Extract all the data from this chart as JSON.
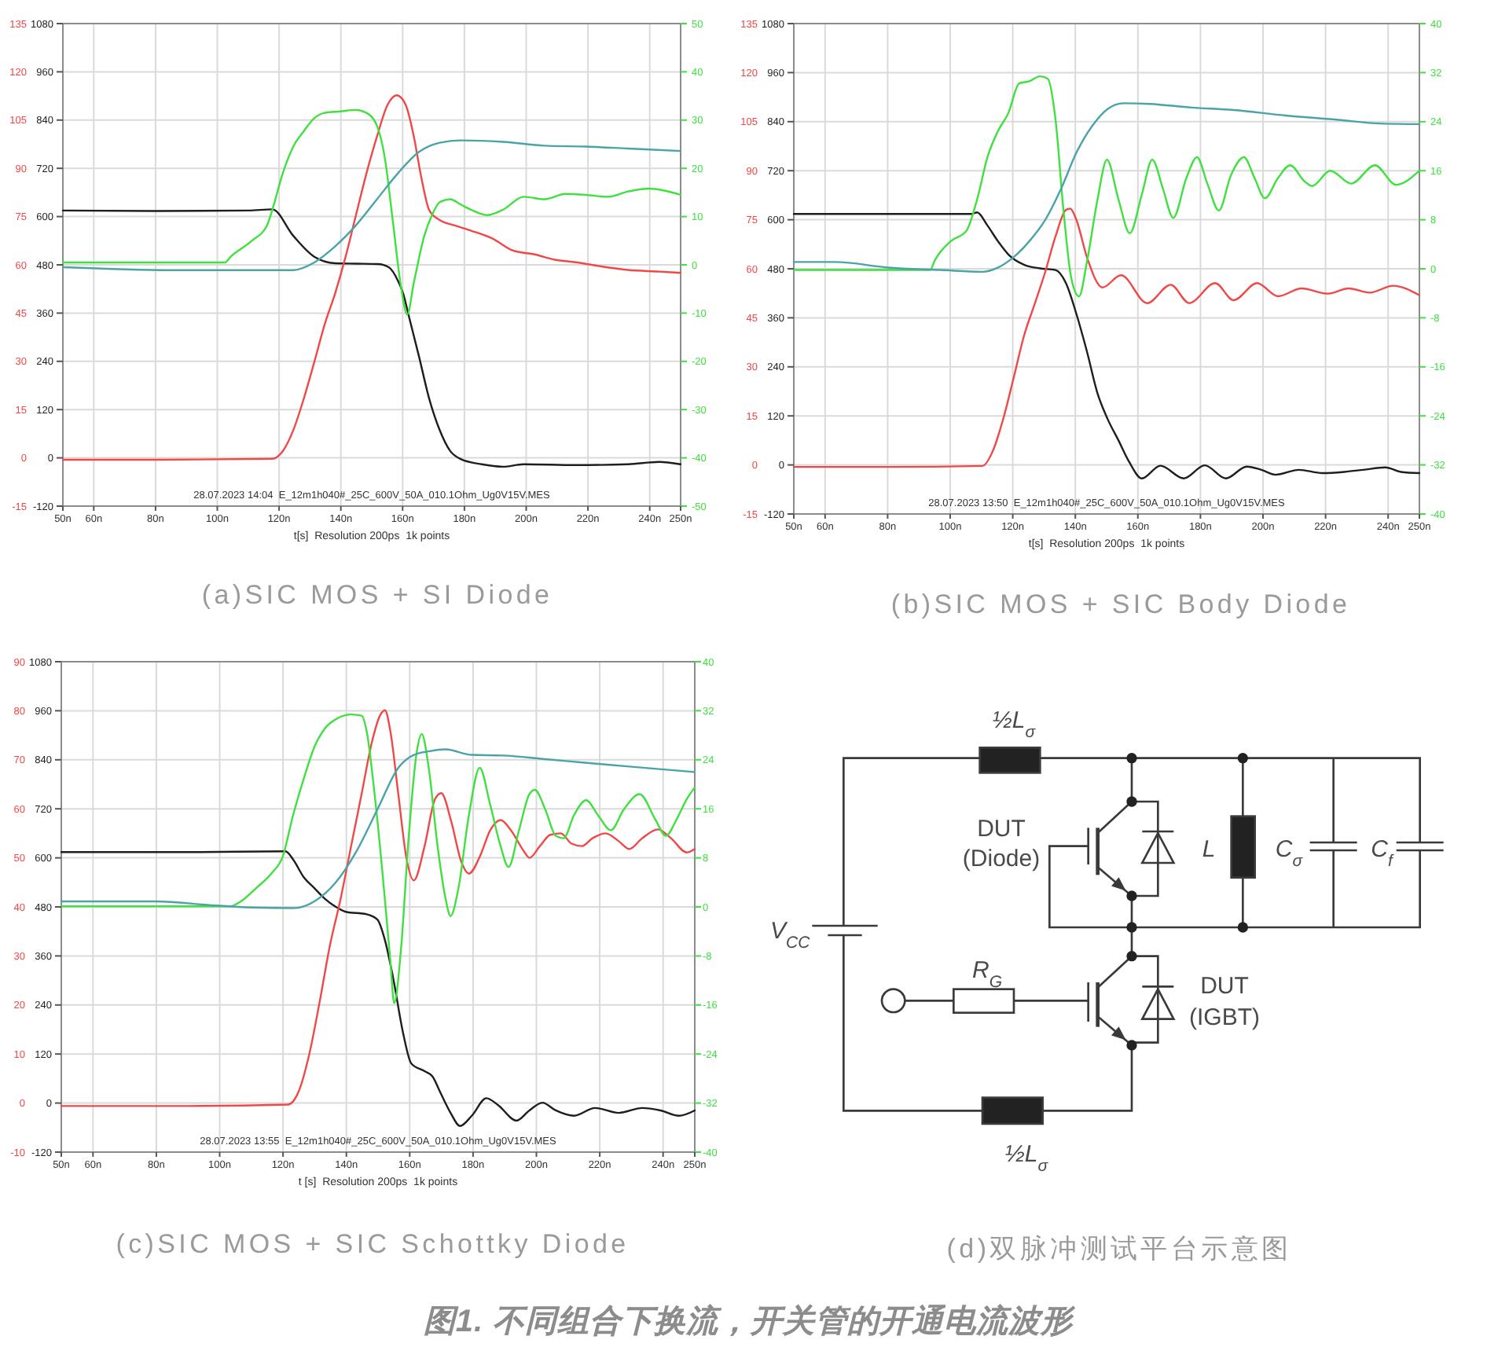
{
  "chart_data": [
    {
      "type": "line",
      "title": "(a)SIC MOS + SI Diode",
      "xlabel": "t[s]  Resolution 200ps  1k points",
      "annotations": [
        "28.07.2023 14:04  E_12m1h040#_25C_600V_50A_010.1Ohm_Ug0V15V.MES"
      ],
      "grid": true,
      "xlim": [
        50,
        250
      ],
      "xticks": [
        {
          "value": 50,
          "label": "50n"
        },
        {
          "value": 60,
          "label": "60n"
        },
        {
          "value": 80,
          "label": "80n"
        },
        {
          "value": 100,
          "label": "100n"
        },
        {
          "value": 120,
          "label": "120n"
        },
        {
          "value": 140,
          "label": "140n"
        },
        {
          "value": 160,
          "label": "160n"
        },
        {
          "value": 180,
          "label": "180n"
        },
        {
          "value": 200,
          "label": "200n"
        },
        {
          "value": 220,
          "label": "220n"
        },
        {
          "value": 240,
          "label": "240n"
        },
        {
          "value": 250,
          "label": "250n"
        }
      ],
      "ylim": [
        -120,
        1080
      ],
      "yticks": [
        -120,
        0,
        120,
        240,
        360,
        480,
        600,
        720,
        840,
        960,
        1080
      ],
      "y2lim": [
        -50,
        50
      ],
      "y2ticks": [
        -50,
        -40,
        -30,
        -20,
        -10,
        0,
        10,
        20,
        30,
        40,
        50
      ],
      "y3lim": [
        -15,
        135
      ],
      "y3ticks": [
        -15,
        0,
        15,
        30,
        45,
        60,
        75,
        90,
        105,
        120,
        135
      ],
      "series": [
        {
          "color": "#1e1e1e",
          "x": [
            50,
            80,
            110,
            117.8,
            124.6,
            131.4,
            138.1,
            145,
            152,
            155.5,
            158.5,
            160.2,
            161.9,
            165.3,
            168.6,
            172,
            175.4,
            178.8,
            185.6,
            192.4,
            199.2,
            216,
            233,
            243,
            250
          ],
          "values": [
            615,
            614,
            615,
            618,
            552,
            500,
            484,
            483,
            482,
            474,
            440,
            408,
            356,
            252,
            147,
            69,
            17,
            -3,
            -16,
            -22,
            -16,
            -18,
            -16,
            -10,
            -16
          ]
        },
        {
          "color": "#f04848",
          "axis": "y3",
          "x": [
            50,
            80,
            117.8,
            121.2,
            124.6,
            128,
            131.4,
            134.7,
            138.1,
            141.5,
            144.9,
            148.3,
            151.7,
            155.1,
            158.1,
            161,
            163.6,
            166.1,
            168.6,
            172,
            177.1,
            182.2,
            189,
            195.8,
            202.5,
            209.3,
            216.1,
            226.3,
            233,
            243.2,
            250
          ],
          "values": [
            -0.6,
            -0.6,
            -0.3,
            2.1,
            8.6,
            18.4,
            29.8,
            41.3,
            51,
            62.4,
            75.5,
            88.5,
            99.9,
            109.7,
            112.7,
            109.7,
            100,
            86.9,
            77,
            73.9,
            72.2,
            70.6,
            68.2,
            64.4,
            63.3,
            61.6,
            60.8,
            59.2,
            58.4,
            57.9,
            57.5
          ]
        },
        {
          "color": "#3fe03f",
          "axis": "y2",
          "x": [
            50,
            80,
            102.5,
            104.2,
            111,
            116.1,
            117.8,
            121.2,
            124.6,
            128,
            131.4,
            134.7,
            139.8,
            144.9,
            148.3,
            151.7,
            154.2,
            156.8,
            159.3,
            161.5,
            163.6,
            167,
            169.5,
            172,
            175.4,
            178.8,
            182.2,
            187.3,
            192.4,
            199.2,
            206,
            212.7,
            219.5,
            226.3,
            233,
            239.8,
            250
          ],
          "values": [
            0.5,
            0.5,
            0.5,
            1.6,
            4.9,
            8.2,
            11.4,
            19,
            24.5,
            27.7,
            30.4,
            31.5,
            31.8,
            32.1,
            31.5,
            28.8,
            22.3,
            9.2,
            -3.8,
            -10.3,
            -3.8,
            6,
            10.3,
            13,
            13.6,
            12.5,
            11.4,
            10.3,
            11.4,
            14.1,
            13.6,
            14.7,
            14.5,
            14.1,
            15.2,
            15.8,
            14.5
          ]
        },
        {
          "color": "#4aa3a8",
          "axis": "y2",
          "x": [
            50,
            85,
            124.6,
            131.4,
            138.1,
            144.9,
            151.7,
            158.5,
            165.3,
            172,
            178.8,
            192.4,
            206,
            219.5,
            233,
            250
          ],
          "values": [
            -0.5,
            -1.1,
            -1.1,
            0.5,
            3.8,
            8.2,
            13.6,
            19,
            23.4,
            25.3,
            25.8,
            25.5,
            24.7,
            24.5,
            24.1,
            23.6
          ]
        }
      ]
    },
    {
      "type": "line",
      "title": "(b)SIC MOS + SIC Body Diode",
      "xlabel": "t[s]  Resolution 200ps  1k points",
      "annotations": [
        "28.07.2023 13:50  E_12m1h040#_25C_600V_50A_010.1Ohm_Ug0V15V.MES"
      ],
      "grid": true,
      "xlim": [
        50,
        250
      ],
      "xticks": [
        {
          "value": 50,
          "label": "50n"
        },
        {
          "value": 60,
          "label": "60n"
        },
        {
          "value": 80,
          "label": "80n"
        },
        {
          "value": 100,
          "label": "100n"
        },
        {
          "value": 120,
          "label": "120n"
        },
        {
          "value": 140,
          "label": "140n"
        },
        {
          "value": 160,
          "label": "160n"
        },
        {
          "value": 180,
          "label": "180n"
        },
        {
          "value": 200,
          "label": "200n"
        },
        {
          "value": 220,
          "label": "220n"
        },
        {
          "value": 240,
          "label": "240n"
        },
        {
          "value": 250,
          "label": "250n"
        }
      ],
      "ylim": [
        -120,
        1080
      ],
      "yticks": [
        -120,
        0,
        120,
        240,
        360,
        480,
        600,
        720,
        840,
        960,
        1080
      ],
      "y2lim": [
        -40,
        40
      ],
      "y2ticks": [
        -40,
        -32,
        -24,
        -16,
        -8,
        0,
        8,
        16,
        24,
        32,
        40
      ],
      "y3lim": [
        -15,
        135
      ],
      "y3ticks": [
        -15,
        0,
        15,
        30,
        45,
        60,
        75,
        90,
        105,
        120,
        135
      ],
      "series": [
        {
          "color": "#1e1e1e",
          "x": [
            50,
            80,
            106.9,
            108.6,
            111.9,
            115.3,
            118.6,
            123.6,
            128.7,
            133.7,
            137,
            140.4,
            143.7,
            147.1,
            150.4,
            153.8,
            157.1,
            161.3,
            167.2,
            174.7,
            181.4,
            188.1,
            194.8,
            199.5,
            204,
            211.5,
            219,
            226,
            232,
            239.1,
            244.1,
            250
          ],
          "values": [
            614,
            614,
            614,
            618,
            586,
            547,
            515,
            490,
            481,
            477,
            445,
            368,
            278,
            175,
            111,
            60,
            9,
            -33,
            -2,
            -33,
            -1,
            -33,
            -4,
            -12,
            -24,
            -12,
            -20,
            -17,
            -12,
            -6,
            -17,
            -20
          ]
        },
        {
          "color": "#f04848",
          "axis": "y3",
          "x": [
            50,
            80,
            110.3,
            113.6,
            116.9,
            120.3,
            123.6,
            127,
            130.3,
            133.7,
            137,
            138.4,
            140.4,
            143.7,
            148.7,
            154.6,
            163,
            170.5,
            176.4,
            184.7,
            190.6,
            198.1,
            204.8,
            212.3,
            220.7,
            227.4,
            234.1,
            241.6,
            250
          ],
          "values": [
            -0.6,
            -0.6,
            -0.3,
            4.2,
            13.9,
            26.7,
            39.5,
            49.2,
            58.8,
            70,
            78,
            78.4,
            74.8,
            63.6,
            54.3,
            58,
            49.5,
            55.1,
            49.5,
            55.6,
            50.4,
            55.6,
            51.6,
            54,
            52.4,
            54,
            52.7,
            54.8,
            51.9
          ]
        },
        {
          "color": "#3fe03f",
          "axis": "y2",
          "x": [
            50,
            93.5,
            95.2,
            100.2,
            105.2,
            108.6,
            111.9,
            115.3,
            118.6,
            122,
            125.3,
            128.7,
            131.2,
            133.7,
            136.2,
            138.7,
            141.2,
            143.7,
            147.1,
            150.1,
            153.8,
            157.4,
            161.3,
            164.6,
            168,
            171.3,
            175.5,
            178.9,
            182.2,
            185.9,
            189.7,
            193.9,
            197.3,
            200.6,
            204.8,
            208.7,
            213.2,
            215.7,
            221.5,
            228.2,
            235.8,
            242.5,
            250
          ],
          "values": [
            -0.2,
            -0.2,
            1.5,
            4.5,
            6.2,
            11.3,
            18.2,
            22.5,
            25.4,
            30.2,
            30.6,
            31.4,
            31,
            24.2,
            9.6,
            -1.5,
            -4.5,
            1.1,
            11.3,
            17.8,
            11.3,
            5.8,
            12.2,
            17.8,
            13.1,
            8.3,
            14.8,
            18.2,
            13.9,
            9.5,
            15.2,
            18.2,
            14.8,
            11.5,
            14.8,
            16.9,
            14.3,
            13.5,
            16,
            13.9,
            16.9,
            13.7,
            16
          ]
        },
        {
          "color": "#4aa3a8",
          "axis": "y2",
          "x": [
            50,
            63.4,
            80,
            97,
            110.3,
            115.3,
            120.3,
            125.3,
            130.3,
            135.4,
            140.4,
            145.4,
            150.4,
            155.4,
            163.8,
            177.2,
            190.6,
            207.3,
            224.1,
            237.4,
            250
          ],
          "values": [
            1.1,
            1.1,
            0.2,
            -0.2,
            -0.5,
            0.2,
            1.9,
            4.5,
            7.9,
            13,
            19,
            23.3,
            26.1,
            27,
            26.9,
            26.3,
            25.9,
            25,
            24.3,
            23.7,
            23.6
          ]
        }
      ]
    },
    {
      "type": "line",
      "title": "(c)SIC MOS + SIC Schottky Diode",
      "xlabel": "t [s]  Resolution 200ps  1k points",
      "annotations": [
        "28.07.2023 13:55  E_12m1h040#_25C_600V_50A_010.1Ohm_Ug0V15V.MES"
      ],
      "grid": true,
      "xlim": [
        50,
        250
      ],
      "xticks": [
        {
          "value": 50,
          "label": "50n"
        },
        {
          "value": 60,
          "label": "60n"
        },
        {
          "value": 80,
          "label": "80n"
        },
        {
          "value": 100,
          "label": "100n"
        },
        {
          "value": 120,
          "label": "120n"
        },
        {
          "value": 140,
          "label": "140n"
        },
        {
          "value": 160,
          "label": "160n"
        },
        {
          "value": 180,
          "label": "180n"
        },
        {
          "value": 200,
          "label": "200n"
        },
        {
          "value": 220,
          "label": "220n"
        },
        {
          "value": 240,
          "label": "240n"
        },
        {
          "value": 250,
          "label": "250n"
        }
      ],
      "ylim": [
        -120,
        1080
      ],
      "yticks": [
        -120,
        0,
        120,
        240,
        360,
        480,
        600,
        720,
        840,
        960,
        1080
      ],
      "y2lim": [
        -40,
        40
      ],
      "y2ticks": [
        -40,
        -32,
        -24,
        -16,
        -8,
        0,
        8,
        16,
        24,
        32,
        40
      ],
      "y3lim": [
        -10,
        90
      ],
      "y3ticks": [
        -10,
        0,
        10,
        20,
        30,
        40,
        50,
        60,
        70,
        80,
        90
      ],
      "series": [
        {
          "color": "#1e1e1e",
          "x": [
            50,
            90,
            120.8,
            123.2,
            126.6,
            129.9,
            133.2,
            136.5,
            139.8,
            146.4,
            149.8,
            152.2,
            154.7,
            158,
            160.5,
            164.7,
            167.2,
            169.6,
            172.9,
            175.9,
            179.6,
            184.2,
            187.9,
            193.7,
            197.8,
            201.9,
            206.1,
            211.9,
            218.5,
            226,
            233.4,
            239.2,
            245,
            250
          ],
          "values": [
            614,
            614,
            616,
            596,
            552,
            526,
            500,
            481,
            468,
            462,
            449,
            398,
            309,
            168,
            97,
            78,
            65,
            27,
            -24,
            -56,
            -31,
            12,
            -5,
            -43,
            -18,
            1,
            -18,
            -31,
            -12,
            -24,
            -12,
            -18,
            -31,
            -18
          ]
        },
        {
          "color": "#f04848",
          "axis": "y3",
          "x": [
            50,
            90,
            121.6,
            124.9,
            128.2,
            131.5,
            134.8,
            138.2,
            141.5,
            144.8,
            148.1,
            150.6,
            152.2,
            153.9,
            156.4,
            158.9,
            161.3,
            164.7,
            168,
            170,
            173,
            176.3,
            178.7,
            182.1,
            185.4,
            188.7,
            192,
            196.1,
            197.8,
            201.1,
            204.4,
            207.7,
            211.1,
            214.4,
            217.7,
            221.8,
            226,
            229.3,
            233.4,
            238.4,
            242.5,
            247.5,
            250
          ],
          "values": [
            -0.6,
            -0.6,
            -0.3,
            2.3,
            9.7,
            20.4,
            32.1,
            41.7,
            52.4,
            63,
            73.7,
            79,
            80.1,
            75.8,
            63,
            50.2,
            45.4,
            52.4,
            62,
            63.2,
            57.7,
            49.2,
            46.8,
            50.2,
            55.6,
            57.7,
            55.6,
            51.3,
            50,
            52.4,
            54.7,
            55,
            52.9,
            52.4,
            54,
            55,
            53.4,
            51.8,
            54,
            55.8,
            54,
            51.1,
            51.8
          ]
        },
        {
          "color": "#3fe03f",
          "axis": "y2",
          "x": [
            50,
            90,
            103.4,
            106.7,
            111.6,
            116.6,
            119.9,
            123.2,
            126.6,
            129.9,
            133.2,
            137.3,
            141.5,
            144.8,
            146.4,
            148.9,
            151.4,
            153.9,
            155.1,
            157.2,
            159.7,
            162.2,
            163.8,
            166,
            168.8,
            171.3,
            172.9,
            175.4,
            178.7,
            182.1,
            185.4,
            188.7,
            191.2,
            194.5,
            197.8,
            199.5,
            202.8,
            206.1,
            208.6,
            211.9,
            215.7,
            219.4,
            223.5,
            227.6,
            232.6,
            237.6,
            240.9,
            244.2,
            247.5,
            250
          ],
          "values": [
            0.1,
            0.1,
            0.1,
            0.9,
            3.1,
            5.6,
            8.2,
            15,
            21,
            26.1,
            29.1,
            30.8,
            31.4,
            31.2,
            28.7,
            18.5,
            5.6,
            -8.9,
            -15.7,
            -7.2,
            11.6,
            25.2,
            28.2,
            22.7,
            9.9,
            1.4,
            -1.5,
            3.1,
            15,
            22.7,
            16.7,
            9.9,
            6.5,
            12.5,
            18.4,
            19.1,
            15.9,
            11.6,
            11.2,
            15,
            17.4,
            15,
            12.5,
            15.9,
            18.4,
            14.2,
            11.6,
            14.2,
            17.6,
            19.5
          ]
        },
        {
          "color": "#4aa3a8",
          "axis": "y2",
          "x": [
            50,
            80.2,
            96.7,
            110,
            123.2,
            129.9,
            136.5,
            143.1,
            149.8,
            156.4,
            161.3,
            166.3,
            171.3,
            179.6,
            189.5,
            202.8,
            216,
            229.3,
            250
          ],
          "values": [
            0.9,
            0.9,
            0.3,
            -0.1,
            -0.2,
            0.9,
            3.9,
            9,
            15.9,
            22.7,
            24.8,
            25.4,
            25.7,
            24.8,
            24.7,
            24.1,
            23.5,
            22.9,
            22
          ]
        }
      ]
    },
    {
      "type": "other",
      "title": "(d)双脉冲测试平台示意图",
      "annotations": [
        "½L$_{σ}$",
        "DUT (Diode)",
        "L",
        "C$_{σ}$",
        "C$_{f}$",
        "V$_{CC}$",
        "R$_{G}$",
        "DUT (IGBT)",
        "½L$_{σ}$",
        "图1. 不同组合下换流，开关管的开通电流波形"
      ]
    }
  ]
}
